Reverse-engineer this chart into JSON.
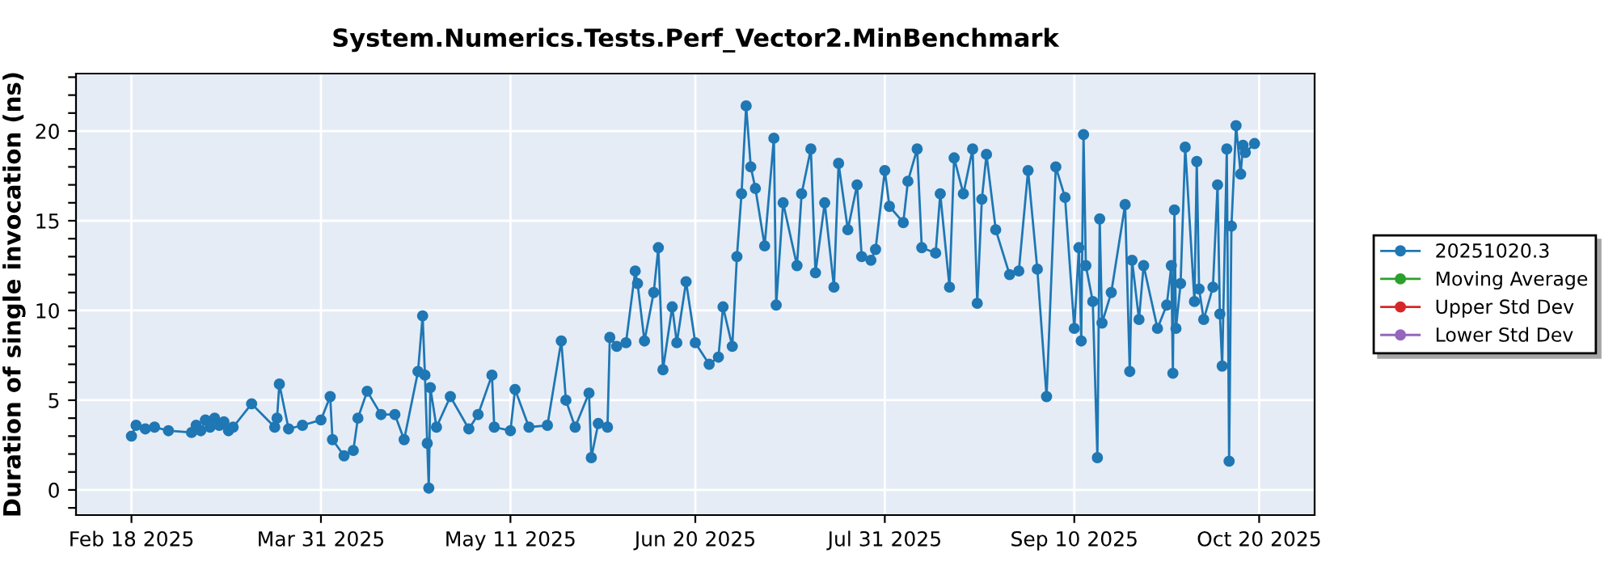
{
  "chart_data": {
    "type": "line",
    "title": "System.Numerics.Tests.Perf_Vector2.MinBenchmark",
    "ylabel": "Duration of single invocation (ns)",
    "xlim": [
      "2025-02-06",
      "2025-11-01"
    ],
    "xticks": [
      {
        "value": "2025-02-18",
        "label": "Feb 18 2025"
      },
      {
        "value": "2025-03-31",
        "label": "Mar 31 2025"
      },
      {
        "value": "2025-05-11",
        "label": "May 11 2025"
      },
      {
        "value": "2025-06-20",
        "label": "Jun 20 2025"
      },
      {
        "value": "2025-07-31",
        "label": "Jul 31 2025"
      },
      {
        "value": "2025-09-10",
        "label": "Sep 10 2025"
      },
      {
        "value": "2025-10-20",
        "label": "Oct 20 2025"
      }
    ],
    "ylim": [
      -1.4,
      23.2
    ],
    "yticks": [
      {
        "value": -1,
        "label": null
      },
      0,
      {
        "value": 1,
        "label": null
      },
      {
        "value": 2,
        "label": null
      },
      {
        "value": 3,
        "label": null
      },
      {
        "value": 4,
        "label": null
      },
      5,
      {
        "value": 6,
        "label": null
      },
      {
        "value": 7,
        "label": null
      },
      {
        "value": 8,
        "label": null
      },
      {
        "value": 9,
        "label": null
      },
      10,
      {
        "value": 11,
        "label": null
      },
      {
        "value": 12,
        "label": null
      },
      {
        "value": 13,
        "label": null
      },
      {
        "value": 14,
        "label": null
      },
      15,
      {
        "value": 16,
        "label": null
      },
      {
        "value": 17,
        "label": null
      },
      {
        "value": 18,
        "label": null
      },
      {
        "value": 19,
        "label": null
      },
      20,
      {
        "value": 21,
        "label": null
      },
      {
        "value": 22,
        "label": null
      },
      {
        "value": 23,
        "label": null
      }
    ],
    "grid": true,
    "legend": "right",
    "marker": "circle",
    "line_style": "solid",
    "series": [
      {
        "name": "20251020.3",
        "color": "#1f77b4",
        "x": [
          "2025-02-18",
          "2025-02-19",
          "2025-02-21",
          "2025-02-23",
          "2025-02-26",
          "2025-03-03",
          "2025-03-04",
          "2025-03-05",
          "2025-03-06",
          "2025-03-07",
          "2025-03-08",
          "2025-03-09",
          "2025-03-10",
          "2025-03-11",
          "2025-03-12",
          "2025-03-16",
          "2025-03-21",
          "2025-03-21T12:00",
          "2025-03-22",
          "2025-03-24",
          "2025-03-27",
          "2025-03-31",
          "2025-04-02",
          "2025-04-02T12:00",
          "2025-04-05",
          "2025-04-07",
          "2025-04-08",
          "2025-04-10",
          "2025-04-13",
          "2025-04-16",
          "2025-04-18",
          "2025-04-21",
          "2025-04-22",
          "2025-04-22T12:00",
          "2025-04-23",
          "2025-04-23T08:00",
          "2025-04-23T16:00",
          "2025-04-25",
          "2025-04-28",
          "2025-05-02",
          "2025-05-04",
          "2025-05-07",
          "2025-05-07T12:00",
          "2025-05-11",
          "2025-05-12",
          "2025-05-15",
          "2025-05-19",
          "2025-05-22",
          "2025-05-23",
          "2025-05-25",
          "2025-05-28",
          "2025-05-28T12:00",
          "2025-05-30",
          "2025-06-01",
          "2025-06-01T12:00",
          "2025-06-03",
          "2025-06-05",
          "2025-06-07",
          "2025-06-07T12:00",
          "2025-06-09",
          "2025-06-11",
          "2025-06-12",
          "2025-06-13",
          "2025-06-15",
          "2025-06-16",
          "2025-06-18",
          "2025-06-20",
          "2025-06-23",
          "2025-06-25",
          "2025-06-26",
          "2025-06-28",
          "2025-06-29",
          "2025-06-30",
          "2025-07-01",
          "2025-07-02",
          "2025-07-03",
          "2025-07-05",
          "2025-07-07",
          "2025-07-07T12:00",
          "2025-07-09",
          "2025-07-12",
          "2025-07-13",
          "2025-07-15",
          "2025-07-16",
          "2025-07-18",
          "2025-07-20",
          "2025-07-21",
          "2025-07-23",
          "2025-07-25",
          "2025-07-26",
          "2025-07-28",
          "2025-07-29",
          "2025-07-31",
          "2025-08-01",
          "2025-08-04",
          "2025-08-05",
          "2025-08-07",
          "2025-08-08",
          "2025-08-11",
          "2025-08-12",
          "2025-08-14",
          "2025-08-15",
          "2025-08-17",
          "2025-08-19",
          "2025-08-20",
          "2025-08-21",
          "2025-08-22",
          "2025-08-24",
          "2025-08-27",
          "2025-08-29",
          "2025-08-31",
          "2025-09-02",
          "2025-09-04",
          "2025-09-06",
          "2025-09-08",
          "2025-09-10",
          "2025-09-11",
          "2025-09-11T12:00",
          "2025-09-12",
          "2025-09-12T12:00",
          "2025-09-14",
          "2025-09-15",
          "2025-09-15T12:00",
          "2025-09-16",
          "2025-09-18",
          "2025-09-21",
          "2025-09-22",
          "2025-09-22T12:00",
          "2025-09-24",
          "2025-09-25",
          "2025-09-28",
          "2025-09-30",
          "2025-10-01",
          "2025-10-01T08:00",
          "2025-10-01T16:00",
          "2025-10-02",
          "2025-10-03",
          "2025-10-04",
          "2025-10-06",
          "2025-10-06T12:00",
          "2025-10-07",
          "2025-10-08",
          "2025-10-10",
          "2025-10-11",
          "2025-10-11T12:00",
          "2025-10-12",
          "2025-10-13",
          "2025-10-13T12:00",
          "2025-10-14",
          "2025-10-15",
          "2025-10-16",
          "2025-10-16T12:00",
          "2025-10-17",
          "2025-10-19"
        ],
        "values": [
          3.0,
          3.6,
          3.4,
          3.5,
          3.3,
          3.2,
          3.6,
          3.3,
          3.9,
          3.5,
          4.0,
          3.6,
          3.8,
          3.3,
          3.5,
          4.8,
          3.5,
          4.0,
          5.9,
          3.4,
          3.6,
          3.9,
          5.2,
          2.8,
          1.9,
          2.2,
          4.0,
          5.5,
          4.2,
          4.2,
          2.8,
          6.6,
          9.7,
          6.4,
          2.6,
          0.1,
          5.7,
          3.5,
          5.2,
          3.4,
          4.2,
          6.4,
          3.5,
          3.3,
          5.6,
          3.5,
          3.6,
          8.3,
          5.0,
          3.5,
          5.4,
          1.8,
          3.7,
          3.5,
          8.5,
          8.0,
          8.2,
          12.2,
          11.5,
          8.3,
          11.0,
          13.5,
          6.7,
          10.2,
          8.2,
          11.6,
          8.2,
          7.0,
          7.4,
          10.2,
          8.0,
          13.0,
          16.5,
          21.4,
          18.0,
          16.8,
          13.6,
          19.6,
          10.3,
          16.0,
          12.5,
          16.5,
          19.0,
          12.1,
          16.0,
          11.3,
          18.2,
          14.5,
          17.0,
          13.0,
          12.8,
          13.4,
          17.8,
          15.8,
          14.9,
          17.2,
          19.0,
          13.5,
          13.2,
          16.5,
          11.3,
          18.5,
          16.5,
          19.0,
          10.4,
          16.2,
          18.7,
          14.5,
          12.0,
          12.2,
          17.8,
          12.3,
          5.2,
          18.0,
          16.3,
          9.0,
          13.5,
          8.3,
          19.8,
          12.5,
          10.5,
          1.8,
          15.1,
          9.3,
          11.0,
          15.9,
          6.6,
          12.8,
          9.5,
          12.5,
          9.0,
          10.3,
          12.5,
          6.5,
          15.6,
          9.0,
          11.5,
          19.1,
          10.5,
          18.3,
          11.2,
          9.5,
          11.3,
          17.0,
          9.8,
          6.9,
          19.0,
          1.6,
          14.7,
          20.3,
          17.6,
          19.2,
          18.8,
          19.3
        ]
      },
      {
        "name": "Moving Average",
        "color": "#2ca02c"
      },
      {
        "name": "Upper Std Dev",
        "color": "#d62728"
      },
      {
        "name": "Lower Std Dev",
        "color": "#9467bd"
      }
    ]
  }
}
